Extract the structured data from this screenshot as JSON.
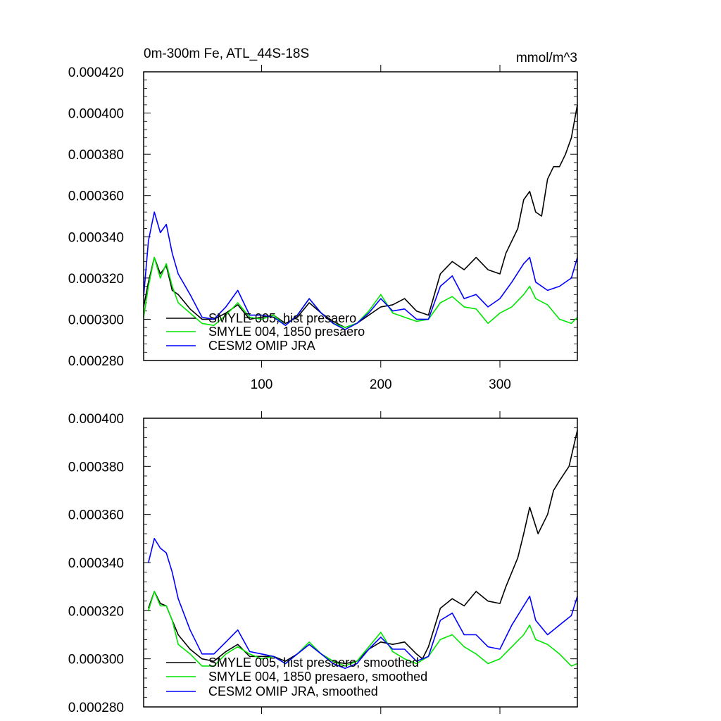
{
  "chart_data": [
    {
      "type": "line",
      "title_left": "0m-300m Fe, ATL_44S-18S",
      "title_right": "mmol/m^3",
      "xlabel": "",
      "ylabel": "",
      "xlim": [
        1,
        365
      ],
      "ylim": [
        0.00028,
        0.00042
      ],
      "yticks": [
        "0.000280",
        "0.000300",
        "0.000320",
        "0.000340",
        "0.000360",
        "0.000380",
        "0.000400",
        "0.000420"
      ],
      "xticks": [
        "100",
        "200",
        "300"
      ],
      "legend_position": "bottom-left",
      "series": [
        {
          "name": "SMYLE 005, hist presaero",
          "color": "#000000",
          "points": [
            [
              1,
              0.000306
            ],
            [
              5,
              0.000318
            ],
            [
              10,
              0.00033
            ],
            [
              15,
              0.000322
            ],
            [
              20,
              0.000326
            ],
            [
              25,
              0.000314
            ],
            [
              30,
              0.000312
            ],
            [
              40,
              0.000305
            ],
            [
              50,
              0.0003
            ],
            [
              60,
              0.0003
            ],
            [
              70,
              0.000303
            ],
            [
              80,
              0.000307
            ],
            [
              90,
              0.0003
            ],
            [
              100,
              0.000301
            ],
            [
              110,
              0.000302
            ],
            [
              120,
              0.000298
            ],
            [
              130,
              0.000301
            ],
            [
              140,
              0.000308
            ],
            [
              150,
              0.000303
            ],
            [
              160,
              0.000299
            ],
            [
              170,
              0.000296
            ],
            [
              180,
              0.000298
            ],
            [
              190,
              0.000302
            ],
            [
              200,
              0.000306
            ],
            [
              210,
              0.000307
            ],
            [
              220,
              0.00031
            ],
            [
              230,
              0.000304
            ],
            [
              240,
              0.000302
            ],
            [
              250,
              0.000322
            ],
            [
              260,
              0.000328
            ],
            [
              270,
              0.000324
            ],
            [
              280,
              0.00033
            ],
            [
              290,
              0.000324
            ],
            [
              300,
              0.000322
            ],
            [
              305,
              0.000332
            ],
            [
              315,
              0.000344
            ],
            [
              320,
              0.000358
            ],
            [
              325,
              0.000362
            ],
            [
              330,
              0.000352
            ],
            [
              335,
              0.00035
            ],
            [
              340,
              0.000368
            ],
            [
              345,
              0.000374
            ],
            [
              350,
              0.000374
            ],
            [
              355,
              0.00038
            ],
            [
              360,
              0.000388
            ],
            [
              365,
              0.000404
            ]
          ]
        },
        {
          "name": "SMYLE 004, 1850 presaero",
          "color": "#00e600",
          "points": [
            [
              1,
              0.000301
            ],
            [
              5,
              0.000316
            ],
            [
              10,
              0.00033
            ],
            [
              15,
              0.00032
            ],
            [
              20,
              0.000327
            ],
            [
              25,
              0.000316
            ],
            [
              30,
              0.000308
            ],
            [
              40,
              0.000303
            ],
            [
              50,
              0.000298
            ],
            [
              60,
              0.000297
            ],
            [
              70,
              0.000302
            ],
            [
              80,
              0.000308
            ],
            [
              90,
              0.000301
            ],
            [
              100,
              0.0003
            ],
            [
              110,
              0.000302
            ],
            [
              120,
              0.000297
            ],
            [
              130,
              0.000302
            ],
            [
              140,
              0.00031
            ],
            [
              150,
              0.000303
            ],
            [
              160,
              0.000298
            ],
            [
              170,
              0.000296
            ],
            [
              180,
              0.000298
            ],
            [
              190,
              0.000304
            ],
            [
              200,
              0.000312
            ],
            [
              210,
              0.000303
            ],
            [
              220,
              0.000301
            ],
            [
              230,
              0.000299
            ],
            [
              240,
              0.0003
            ],
            [
              250,
              0.000308
            ],
            [
              260,
              0.000311
            ],
            [
              270,
              0.000306
            ],
            [
              280,
              0.000305
            ],
            [
              290,
              0.000298
            ],
            [
              300,
              0.000303
            ],
            [
              310,
              0.000306
            ],
            [
              320,
              0.000312
            ],
            [
              325,
              0.000316
            ],
            [
              330,
              0.00031
            ],
            [
              340,
              0.000307
            ],
            [
              350,
              0.0003
            ],
            [
              360,
              0.000298
            ],
            [
              365,
              0.000301
            ]
          ]
        },
        {
          "name": "CESM2 OMIP JRA",
          "color": "#0000ff",
          "points": [
            [
              1,
              0.000311
            ],
            [
              5,
              0.000338
            ],
            [
              10,
              0.000352
            ],
            [
              15,
              0.000342
            ],
            [
              20,
              0.000346
            ],
            [
              25,
              0.000332
            ],
            [
              30,
              0.000322
            ],
            [
              40,
              0.000312
            ],
            [
              50,
              0.000301
            ],
            [
              60,
              0.0003
            ],
            [
              70,
              0.000306
            ],
            [
              80,
              0.000314
            ],
            [
              90,
              0.000302
            ],
            [
              100,
              0.000302
            ],
            [
              110,
              0.000301
            ],
            [
              120,
              0.000297
            ],
            [
              130,
              0.000302
            ],
            [
              140,
              0.00031
            ],
            [
              150,
              0.000303
            ],
            [
              160,
              0.000298
            ],
            [
              170,
              0.000295
            ],
            [
              180,
              0.000298
            ],
            [
              190,
              0.000303
            ],
            [
              200,
              0.00031
            ],
            [
              210,
              0.000304
            ],
            [
              220,
              0.000305
            ],
            [
              230,
              0.0003
            ],
            [
              240,
              0.0003
            ],
            [
              250,
              0.000316
            ],
            [
              260,
              0.000321
            ],
            [
              270,
              0.00031
            ],
            [
              280,
              0.000312
            ],
            [
              290,
              0.000306
            ],
            [
              300,
              0.00031
            ],
            [
              310,
              0.000318
            ],
            [
              320,
              0.000327
            ],
            [
              325,
              0.00033
            ],
            [
              330,
              0.000318
            ],
            [
              340,
              0.000314
            ],
            [
              350,
              0.000316
            ],
            [
              360,
              0.00032
            ],
            [
              365,
              0.00033
            ]
          ]
        }
      ]
    },
    {
      "type": "line",
      "xlabel": "",
      "ylabel": "",
      "xlim": [
        1,
        365
      ],
      "ylim": [
        0.00028,
        0.0004
      ],
      "yticks": [
        "0.000280",
        "0.000300",
        "0.000320",
        "0.000340",
        "0.000360",
        "0.000380",
        "0.000400"
      ],
      "xticks": [],
      "legend_position": "bottom-left",
      "series": [
        {
          "name": "SMYLE 005, hist presaero, smoothed",
          "color": "#000000",
          "points": [
            [
              5,
              0.000321
            ],
            [
              10,
              0.000328
            ],
            [
              15,
              0.000323
            ],
            [
              20,
              0.000322
            ],
            [
              25,
              0.000316
            ],
            [
              30,
              0.00031
            ],
            [
              40,
              0.000304
            ],
            [
              50,
              0.0003
            ],
            [
              60,
              0.000299
            ],
            [
              70,
              0.000303
            ],
            [
              80,
              0.000306
            ],
            [
              90,
              0.000301
            ],
            [
              100,
              0.000301
            ],
            [
              110,
              0.000301
            ],
            [
              120,
              0.000299
            ],
            [
              130,
              0.000302
            ],
            [
              140,
              0.000306
            ],
            [
              150,
              0.000302
            ],
            [
              160,
              0.000299
            ],
            [
              170,
              0.000298
            ],
            [
              180,
              0.000299
            ],
            [
              190,
              0.000304
            ],
            [
              200,
              0.000307
            ],
            [
              210,
              0.000306
            ],
            [
              220,
              0.000307
            ],
            [
              230,
              0.000302
            ],
            [
              235,
              0.0003
            ],
            [
              240,
              0.000305
            ],
            [
              250,
              0.000321
            ],
            [
              260,
              0.000325
            ],
            [
              270,
              0.000322
            ],
            [
              280,
              0.000328
            ],
            [
              290,
              0.000324
            ],
            [
              300,
              0.000323
            ],
            [
              305,
              0.00033
            ],
            [
              315,
              0.000342
            ],
            [
              320,
              0.000352
            ],
            [
              325,
              0.000363
            ],
            [
              332,
              0.000352
            ],
            [
              340,
              0.00036
            ],
            [
              345,
              0.00037
            ],
            [
              350,
              0.000374
            ],
            [
              358,
              0.00038
            ],
            [
              365,
              0.000395
            ]
          ]
        },
        {
          "name": "SMYLE 004, 1850 presaero, smoothed",
          "color": "#00e600",
          "points": [
            [
              5,
              0.00032
            ],
            [
              10,
              0.000328
            ],
            [
              15,
              0.000322
            ],
            [
              20,
              0.000322
            ],
            [
              25,
              0.000316
            ],
            [
              30,
              0.000306
            ],
            [
              40,
              0.000302
            ],
            [
              50,
              0.000297
            ],
            [
              60,
              0.000297
            ],
            [
              70,
              0.000302
            ],
            [
              80,
              0.000305
            ],
            [
              90,
              0.000302
            ],
            [
              100,
              0.0003
            ],
            [
              110,
              0.000301
            ],
            [
              120,
              0.000298
            ],
            [
              130,
              0.000302
            ],
            [
              140,
              0.000307
            ],
            [
              150,
              0.000302
            ],
            [
              160,
              0.000299
            ],
            [
              170,
              0.000297
            ],
            [
              180,
              0.000299
            ],
            [
              190,
              0.000305
            ],
            [
              200,
              0.000311
            ],
            [
              210,
              0.000303
            ],
            [
              220,
              0.0003
            ],
            [
              230,
              0.000298
            ],
            [
              240,
              0.000301
            ],
            [
              250,
              0.000308
            ],
            [
              260,
              0.00031
            ],
            [
              270,
              0.000305
            ],
            [
              280,
              0.000302
            ],
            [
              290,
              0.000298
            ],
            [
              300,
              0.0003
            ],
            [
              310,
              0.000305
            ],
            [
              320,
              0.00031
            ],
            [
              325,
              0.000314
            ],
            [
              330,
              0.000308
            ],
            [
              340,
              0.000306
            ],
            [
              350,
              0.000302
            ],
            [
              360,
              0.000297
            ],
            [
              365,
              0.000298
            ]
          ]
        },
        {
          "name": "CESM2 OMIP JRA, smoothed",
          "color": "#0000ff",
          "points": [
            [
              5,
              0.00034
            ],
            [
              10,
              0.00035
            ],
            [
              15,
              0.000346
            ],
            [
              20,
              0.000344
            ],
            [
              25,
              0.000336
            ],
            [
              30,
              0.000325
            ],
            [
              40,
              0.000312
            ],
            [
              50,
              0.000302
            ],
            [
              60,
              0.000302
            ],
            [
              70,
              0.000307
            ],
            [
              80,
              0.000312
            ],
            [
              90,
              0.000303
            ],
            [
              100,
              0.000302
            ],
            [
              110,
              0.000301
            ],
            [
              120,
              0.000298
            ],
            [
              130,
              0.000302
            ],
            [
              140,
              0.000306
            ],
            [
              150,
              0.000302
            ],
            [
              160,
              0.000298
            ],
            [
              170,
              0.000296
            ],
            [
              180,
              0.000298
            ],
            [
              190,
              0.000304
            ],
            [
              200,
              0.000309
            ],
            [
              210,
              0.000304
            ],
            [
              220,
              0.000304
            ],
            [
              230,
              0.000299
            ],
            [
              240,
              0.000301
            ],
            [
              250,
              0.000316
            ],
            [
              260,
              0.000319
            ],
            [
              270,
              0.00031
            ],
            [
              280,
              0.00031
            ],
            [
              290,
              0.000305
            ],
            [
              300,
              0.000304
            ],
            [
              310,
              0.000314
            ],
            [
              320,
              0.000322
            ],
            [
              325,
              0.000326
            ],
            [
              330,
              0.000316
            ],
            [
              340,
              0.00031
            ],
            [
              350,
              0.000314
            ],
            [
              360,
              0.000318
            ],
            [
              365,
              0.000326
            ]
          ]
        }
      ]
    }
  ]
}
